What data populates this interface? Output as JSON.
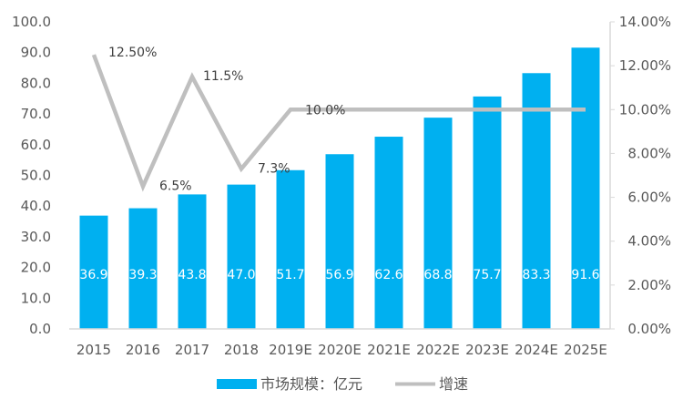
{
  "chart_data": {
    "type": "bar",
    "categories": [
      "2015",
      "2016",
      "2017",
      "2018",
      "2019E",
      "2020E",
      "2021E",
      "2022E",
      "2023E",
      "2024E",
      "2025E"
    ],
    "series": [
      {
        "name": "市场规模：亿元",
        "type": "bar",
        "axis": "left",
        "color": "#00B0F0",
        "values": [
          36.9,
          39.3,
          43.8,
          47.0,
          51.7,
          56.9,
          62.6,
          68.8,
          75.7,
          83.3,
          91.6
        ],
        "labels": [
          "36.9",
          "39.3",
          "43.8",
          "47.0",
          "51.7",
          "56.9",
          "62.6",
          "68.8",
          "75.7",
          "83.3",
          "91.6"
        ]
      },
      {
        "name": "增速",
        "type": "line",
        "axis": "right",
        "color": "#BFBFBF",
        "values": [
          12.5,
          6.5,
          11.5,
          7.3,
          10.0,
          10.0,
          10.0,
          10.0,
          10.0,
          10.0,
          10.0
        ],
        "labels": [
          "12.50%",
          "6.5%",
          "11.5%",
          "7.3%",
          "10.0%",
          "",
          "",
          "",
          "",
          "",
          ""
        ]
      }
    ],
    "ylim": [
      0,
      100
    ],
    "y_ticks": [
      "0.0",
      "10.0",
      "20.0",
      "30.0",
      "40.0",
      "50.0",
      "60.0",
      "70.0",
      "80.0",
      "90.0",
      "100.0"
    ],
    "y2lim": [
      0,
      14
    ],
    "y2_ticks": [
      "0.00%",
      "2.00%",
      "4.00%",
      "6.00%",
      "8.00%",
      "10.00%",
      "12.00%",
      "14.00%"
    ],
    "grid": false,
    "legend_position": "bottom"
  }
}
